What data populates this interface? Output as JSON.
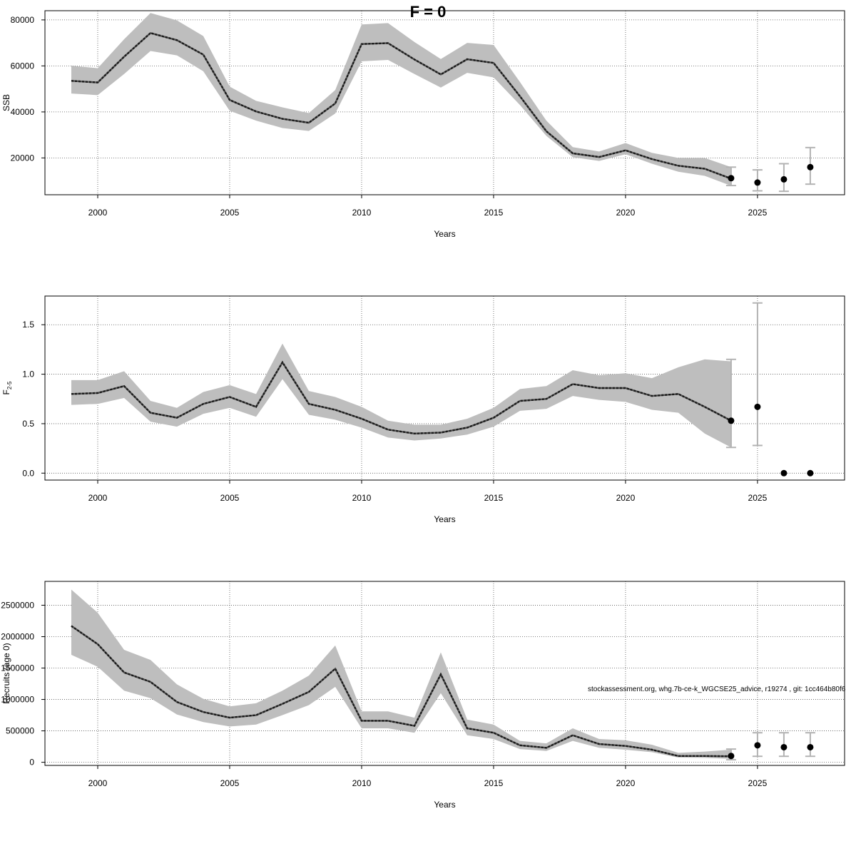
{
  "figure_title": "F = 0",
  "footnote": "stockassessment.org, whg.7b-ce-k_WGCSE25_advice, r19274 , git: 1cc464b80f6",
  "colors": {
    "band": "#bebebe",
    "line": "#1a1a1a",
    "point": "#000000",
    "errorbar": "#b3b3b3",
    "grid": "#555555"
  },
  "chart_data": [
    {
      "type": "line",
      "name": "ssb",
      "ylabel": "SSB",
      "ylabel_sub": "",
      "xlabel": "Years",
      "xlim": [
        1998,
        2028.3
      ],
      "ylim": [
        4000,
        84000
      ],
      "xticks": [
        2000,
        2005,
        2010,
        2015,
        2020,
        2025
      ],
      "yticks": [
        20000,
        40000,
        60000,
        80000
      ],
      "ytick_labels": [
        "20000",
        "40000",
        "60000",
        "80000"
      ],
      "grid": true,
      "years": [
        1999,
        2000,
        2001,
        2002,
        2003,
        2004,
        2005,
        2006,
        2007,
        2008,
        2009,
        2010,
        2011,
        2012,
        2013,
        2014,
        2015,
        2016,
        2017,
        2018,
        2019,
        2020,
        2021,
        2022,
        2023,
        2024
      ],
      "estimate": [
        53500,
        52800,
        64000,
        74300,
        71200,
        64900,
        45200,
        40200,
        37000,
        35300,
        43700,
        69500,
        69900,
        62800,
        56300,
        62900,
        61300,
        46800,
        31600,
        22000,
        20400,
        23300,
        19500,
        16600,
        15300,
        11000
      ],
      "lower": [
        48000,
        47300,
        56500,
        66500,
        64600,
        57700,
        40500,
        36200,
        33000,
        31700,
        39300,
        62000,
        62600,
        56500,
        50600,
        57000,
        55000,
        43000,
        29600,
        20300,
        18700,
        21600,
        17500,
        14000,
        12200,
        7900
      ],
      "upper": [
        60100,
        59000,
        71600,
        83000,
        79800,
        73000,
        51000,
        44800,
        42000,
        39500,
        49500,
        78000,
        78600,
        70400,
        63000,
        70000,
        69100,
        53000,
        36200,
        24700,
        22800,
        26500,
        22200,
        20000,
        20000,
        16000
      ],
      "forecast": [
        {
          "year": 2024,
          "value": 11200,
          "low": 8000,
          "high": 16000
        },
        {
          "year": 2025,
          "value": 9300,
          "low": 5700,
          "high": 14800
        },
        {
          "year": 2026,
          "value": 10700,
          "low": 5500,
          "high": 17500
        },
        {
          "year": 2027,
          "value": 16000,
          "low": 8600,
          "high": 24500
        }
      ]
    },
    {
      "type": "line",
      "name": "fbar",
      "ylabel": "F",
      "ylabel_sub": "2-5",
      "xlabel": "Years",
      "xlim": [
        1998,
        2028.3
      ],
      "ylim": [
        -0.07,
        1.79
      ],
      "xticks": [
        2000,
        2005,
        2010,
        2015,
        2020,
        2025
      ],
      "yticks": [
        0.0,
        0.5,
        1.0,
        1.5
      ],
      "ytick_labels": [
        "0.0",
        "0.5",
        "1.0",
        "1.5"
      ],
      "grid": true,
      "years": [
        1999,
        2000,
        2001,
        2002,
        2003,
        2004,
        2005,
        2006,
        2007,
        2008,
        2009,
        2010,
        2011,
        2012,
        2013,
        2014,
        2015,
        2016,
        2017,
        2018,
        2019,
        2020,
        2021,
        2022,
        2023,
        2024
      ],
      "estimate": [
        0.8,
        0.81,
        0.88,
        0.61,
        0.56,
        0.7,
        0.77,
        0.67,
        1.12,
        0.7,
        0.64,
        0.55,
        0.44,
        0.4,
        0.41,
        0.46,
        0.56,
        0.73,
        0.75,
        0.9,
        0.86,
        0.86,
        0.78,
        0.8,
        0.67,
        0.53
      ],
      "lower": [
        0.69,
        0.7,
        0.76,
        0.52,
        0.47,
        0.6,
        0.66,
        0.57,
        0.95,
        0.59,
        0.54,
        0.46,
        0.36,
        0.33,
        0.35,
        0.39,
        0.47,
        0.63,
        0.65,
        0.78,
        0.74,
        0.72,
        0.64,
        0.61,
        0.4,
        0.26
      ],
      "upper": [
        0.94,
        0.94,
        1.03,
        0.73,
        0.66,
        0.82,
        0.89,
        0.8,
        1.31,
        0.83,
        0.77,
        0.67,
        0.53,
        0.49,
        0.49,
        0.55,
        0.66,
        0.85,
        0.88,
        1.04,
        0.99,
        1.01,
        0.96,
        1.07,
        1.15,
        1.13
      ],
      "forecast": [
        {
          "year": 2024,
          "value": 0.53,
          "low": 0.26,
          "high": 1.15
        },
        {
          "year": 2025,
          "value": 0.67,
          "low": 0.28,
          "high": 1.72
        },
        {
          "year": 2026,
          "value": 0.0,
          "low": 0.0,
          "high": 0.0
        },
        {
          "year": 2027,
          "value": 0.0,
          "low": 0.0,
          "high": 0.0
        }
      ]
    },
    {
      "type": "line",
      "name": "recruits",
      "ylabel": "Recruits (age 0)",
      "ylabel_sub": "",
      "xlabel": "Years",
      "xlim": [
        1998,
        2028.3
      ],
      "ylim": [
        -50000,
        2880000
      ],
      "xticks": [
        2000,
        2005,
        2010,
        2015,
        2020,
        2025
      ],
      "yticks": [
        0,
        500000,
        1000000,
        1500000,
        2000000,
        2500000
      ],
      "ytick_labels": [
        "0",
        "500000",
        "1000000",
        "1500000",
        "2000000",
        "2500000"
      ],
      "grid": true,
      "years": [
        1999,
        2000,
        2001,
        2002,
        2003,
        2004,
        2005,
        2006,
        2007,
        2008,
        2009,
        2010,
        2011,
        2012,
        2013,
        2014,
        2015,
        2016,
        2017,
        2018,
        2019,
        2020,
        2021,
        2022,
        2023,
        2024
      ],
      "estimate": [
        2170000,
        1880000,
        1430000,
        1280000,
        960000,
        800000,
        710000,
        750000,
        930000,
        1120000,
        1490000,
        660000,
        660000,
        580000,
        1400000,
        540000,
        470000,
        270000,
        230000,
        430000,
        290000,
        260000,
        200000,
        100000,
        100000,
        95000
      ],
      "lower": [
        1710000,
        1520000,
        1140000,
        1020000,
        760000,
        640000,
        570000,
        600000,
        750000,
        910000,
        1200000,
        540000,
        540000,
        470000,
        1100000,
        430000,
        370000,
        210000,
        180000,
        340000,
        230000,
        200000,
        160000,
        75000,
        70000,
        55000
      ],
      "upper": [
        2750000,
        2380000,
        1790000,
        1630000,
        1240000,
        1010000,
        890000,
        940000,
        1140000,
        1380000,
        1860000,
        810000,
        810000,
        710000,
        1750000,
        680000,
        600000,
        340000,
        300000,
        540000,
        370000,
        350000,
        280000,
        150000,
        170000,
        200000
      ],
      "forecast": [
        {
          "year": 2024,
          "value": 100000,
          "low": 40000,
          "high": 210000
        },
        {
          "year": 2025,
          "value": 270000,
          "low": 95000,
          "high": 470000
        },
        {
          "year": 2026,
          "value": 240000,
          "low": 95000,
          "high": 470000
        },
        {
          "year": 2027,
          "value": 240000,
          "low": 95000,
          "high": 470000
        }
      ]
    }
  ]
}
